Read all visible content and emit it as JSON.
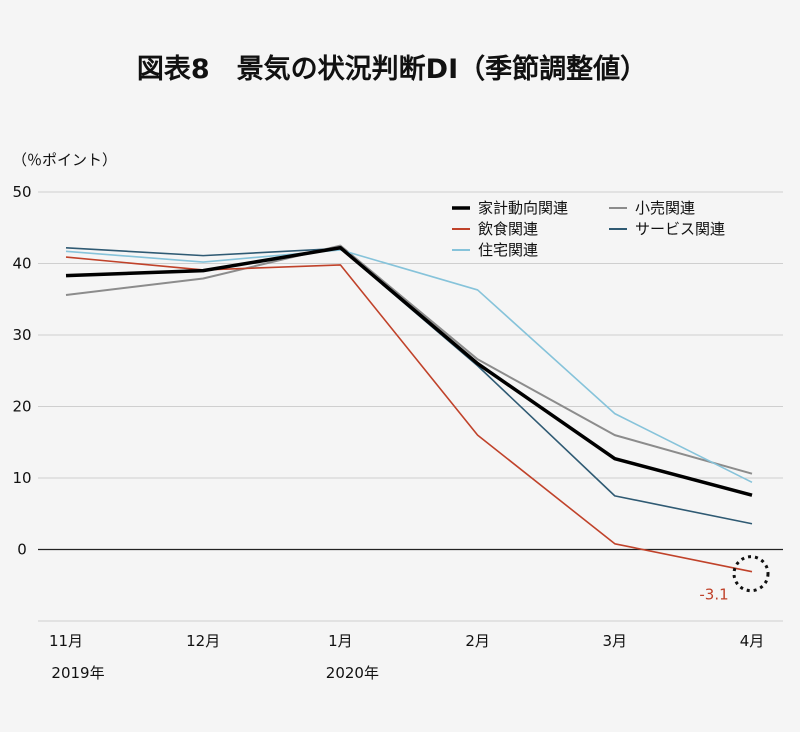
{
  "chart_data": {
    "type": "line",
    "title": "図表8　景気の状況判断DI（季節調整値）",
    "ylabel": "（％ポイント）",
    "ylim": [
      -10,
      50
    ],
    "yticks": [
      0,
      10,
      20,
      30,
      40,
      50
    ],
    "categories": [
      "11月",
      "12月",
      "1月",
      "2月",
      "3月",
      "4月"
    ],
    "year_labels": [
      "2019年",
      "",
      "2020年",
      "",
      "",
      ""
    ],
    "grid": true,
    "legend_placement": "top-right",
    "series": [
      {
        "name": "家計動向関連",
        "color": "#000000",
        "width": 3.5,
        "values": [
          38.3,
          39.0,
          42.2,
          26.0,
          12.7,
          7.6
        ]
      },
      {
        "name": "小売関連",
        "color": "#8c8c8c",
        "width": 2,
        "values": [
          35.6,
          37.9,
          42.5,
          26.6,
          16.0,
          10.6
        ]
      },
      {
        "name": "飲食関連",
        "color": "#c0422a",
        "width": 1.6,
        "values": [
          40.9,
          39.1,
          39.8,
          16.0,
          0.8,
          -3.1
        ]
      },
      {
        "name": "サービス関連",
        "color": "#2f5a73",
        "width": 1.6,
        "values": [
          42.2,
          41.1,
          42.1,
          25.7,
          7.5,
          3.6
        ]
      },
      {
        "name": "住宅関連",
        "color": "#86c3da",
        "width": 1.6,
        "values": [
          41.7,
          40.2,
          41.9,
          36.3,
          19.0,
          9.4
        ]
      }
    ],
    "annotations": [
      {
        "text": "-3.1",
        "series": "飲食関連",
        "category": "4月",
        "color": "#c0422a"
      }
    ]
  }
}
